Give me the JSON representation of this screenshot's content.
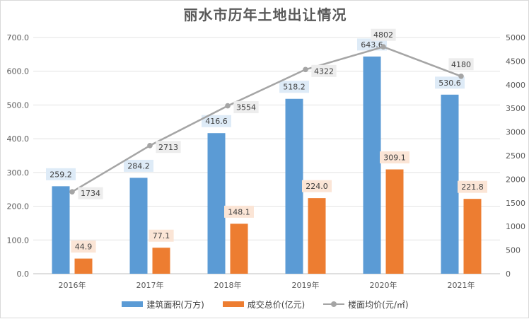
{
  "chart_data": {
    "type": "bar",
    "title": "丽水市历年土地出让情况",
    "categories": [
      "2016年",
      "2017年",
      "2018年",
      "2019年",
      "2020年",
      "2021年"
    ],
    "series": [
      {
        "name": "建筑面积(万方)",
        "kind": "bar",
        "axis": "left",
        "color": "#5b9bd5",
        "label_bg": "#deebf7",
        "values": [
          259.2,
          284.2,
          416.6,
          518.2,
          643.6,
          530.6
        ],
        "labels": [
          "259.2",
          "284.2",
          "416.6",
          "518.2",
          "643.6",
          "530.6"
        ]
      },
      {
        "name": "成交总价(亿元)",
        "kind": "bar",
        "axis": "left",
        "color": "#ed7d31",
        "label_bg": "#fbe5d6",
        "values": [
          44.9,
          77.1,
          148.1,
          224.0,
          309.1,
          221.8
        ],
        "labels": [
          "44.9",
          "77.1",
          "148.1",
          "224.0",
          "309.1",
          "221.8"
        ]
      },
      {
        "name": "楼面均价(元/㎡)",
        "kind": "line",
        "axis": "right",
        "color": "#a5a5a5",
        "label_bg": "#ededed",
        "values": [
          1734,
          2713,
          3554,
          4322,
          4802,
          4180
        ],
        "labels": [
          "1734",
          "2713",
          "3554",
          "4322",
          "4802",
          "4180"
        ]
      }
    ],
    "y_left": {
      "min": 0,
      "max": 700,
      "step": 100,
      "tick_labels": [
        "0.0",
        "100.0",
        "200.0",
        "300.0",
        "400.0",
        "500.0",
        "600.0",
        "700.0"
      ]
    },
    "y_right": {
      "min": 0,
      "max": 5000,
      "step": 500,
      "tick_labels": [
        "0",
        "500",
        "1000",
        "1500",
        "2000",
        "2500",
        "3000",
        "3500",
        "4000",
        "4500",
        "5000"
      ]
    },
    "grid": true,
    "legend_position": "bottom"
  }
}
